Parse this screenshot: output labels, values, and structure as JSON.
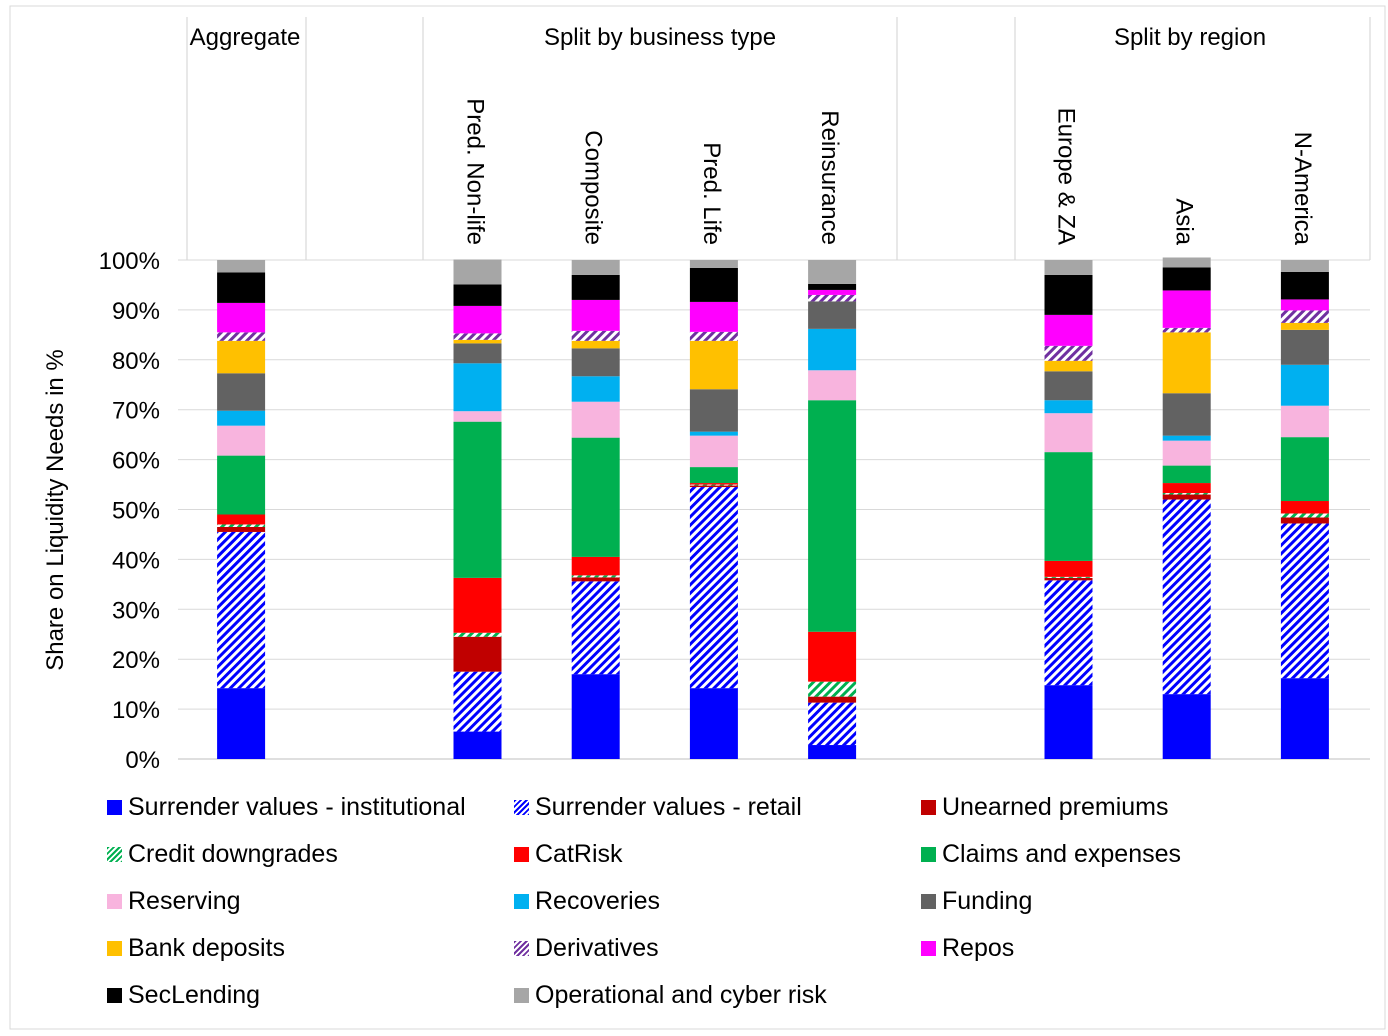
{
  "chart_data": {
    "type": "bar",
    "stacked": true,
    "ylabel": "Share on Liquidity Needs in %",
    "ylim": [
      0,
      100
    ],
    "yticks": [
      "0%",
      "10%",
      "20%",
      "30%",
      "40%",
      "50%",
      "60%",
      "70%",
      "80%",
      "90%",
      "100%"
    ],
    "grid": true,
    "legend_position": "bottom",
    "groups": [
      {
        "label": "Aggregate",
        "categories": [
          "Aggregate"
        ]
      },
      {
        "label": "Split by business type",
        "categories": [
          "Pred. Non-life",
          "Composite",
          "Pred. Life",
          "Reinsurance"
        ]
      },
      {
        "label": "Split by region",
        "categories": [
          "Europe & ZA",
          "Asia",
          "N-America"
        ]
      }
    ],
    "categories": [
      "Aggregate",
      "Pred. Non-life",
      "Composite",
      "Pred. Life",
      "Reinsurance",
      "Europe & ZA",
      "Asia",
      "N-America"
    ],
    "series": [
      {
        "name": "Surrender values - institutional",
        "color": "#0000FF",
        "pattern": "solid",
        "values": [
          14.2,
          5.5,
          17.0,
          14.2,
          2.8,
          14.8,
          13.0,
          16.2
        ]
      },
      {
        "name": "Surrender values - retail",
        "color": "#0000FF",
        "pattern": "hatch",
        "values": [
          31.3,
          12.0,
          18.6,
          40.3,
          8.5,
          21.0,
          39.0,
          31.0
        ]
      },
      {
        "name": "Unearned premiums",
        "color": "#C00000",
        "pattern": "solid",
        "values": [
          1.0,
          7.0,
          0.8,
          0.3,
          1.2,
          0.5,
          1.0,
          1.2
        ]
      },
      {
        "name": "Credit downgrades",
        "color": "#00B050",
        "pattern": "hatch",
        "values": [
          0.5,
          0.8,
          0.4,
          0.2,
          3.0,
          0.2,
          0.3,
          0.8
        ]
      },
      {
        "name": "CatRisk",
        "color": "#FF0000",
        "pattern": "solid",
        "values": [
          2.0,
          11.0,
          3.7,
          0.3,
          10.0,
          3.2,
          2.0,
          2.5
        ]
      },
      {
        "name": "Claims and expenses",
        "color": "#00B050",
        "pattern": "solid",
        "values": [
          11.8,
          31.3,
          23.9,
          3.2,
          46.4,
          21.8,
          3.5,
          12.8
        ]
      },
      {
        "name": "Reserving",
        "color": "#F8B4DE",
        "pattern": "solid",
        "values": [
          6.0,
          2.1,
          7.2,
          6.3,
          6.0,
          7.8,
          5.0,
          6.3
        ]
      },
      {
        "name": "Recoveries",
        "color": "#00B0F0",
        "pattern": "solid",
        "values": [
          3.0,
          9.6,
          5.1,
          0.8,
          8.3,
          2.6,
          1.0,
          8.2
        ]
      },
      {
        "name": "Funding",
        "color": "#626262",
        "pattern": "solid",
        "values": [
          7.5,
          4.0,
          5.6,
          8.5,
          5.5,
          5.8,
          8.5,
          7.0
        ]
      },
      {
        "name": "Bank deposits",
        "color": "#FFC000",
        "pattern": "solid",
        "values": [
          6.5,
          0.7,
          1.5,
          9.7,
          0.0,
          2.1,
          12.2,
          1.4
        ]
      },
      {
        "name": "Derivatives",
        "color": "#7030A0",
        "pattern": "hatch",
        "values": [
          1.7,
          1.3,
          2.0,
          1.8,
          1.3,
          3.0,
          0.9,
          2.5
        ]
      },
      {
        "name": "Repos",
        "color": "#FF00FF",
        "pattern": "solid",
        "values": [
          5.9,
          5.5,
          6.2,
          6.0,
          1.0,
          6.2,
          7.5,
          2.2
        ]
      },
      {
        "name": "SecLending",
        "color": "#000000",
        "pattern": "solid",
        "values": [
          6.1,
          4.3,
          5.0,
          6.8,
          1.2,
          8.0,
          4.6,
          5.5
        ]
      },
      {
        "name": "Operational and cyber risk",
        "color": "#A6A6A6",
        "pattern": "solid",
        "values": [
          2.5,
          5.0,
          3.0,
          1.6,
          4.8,
          3.0,
          2.0,
          2.4
        ]
      }
    ]
  }
}
